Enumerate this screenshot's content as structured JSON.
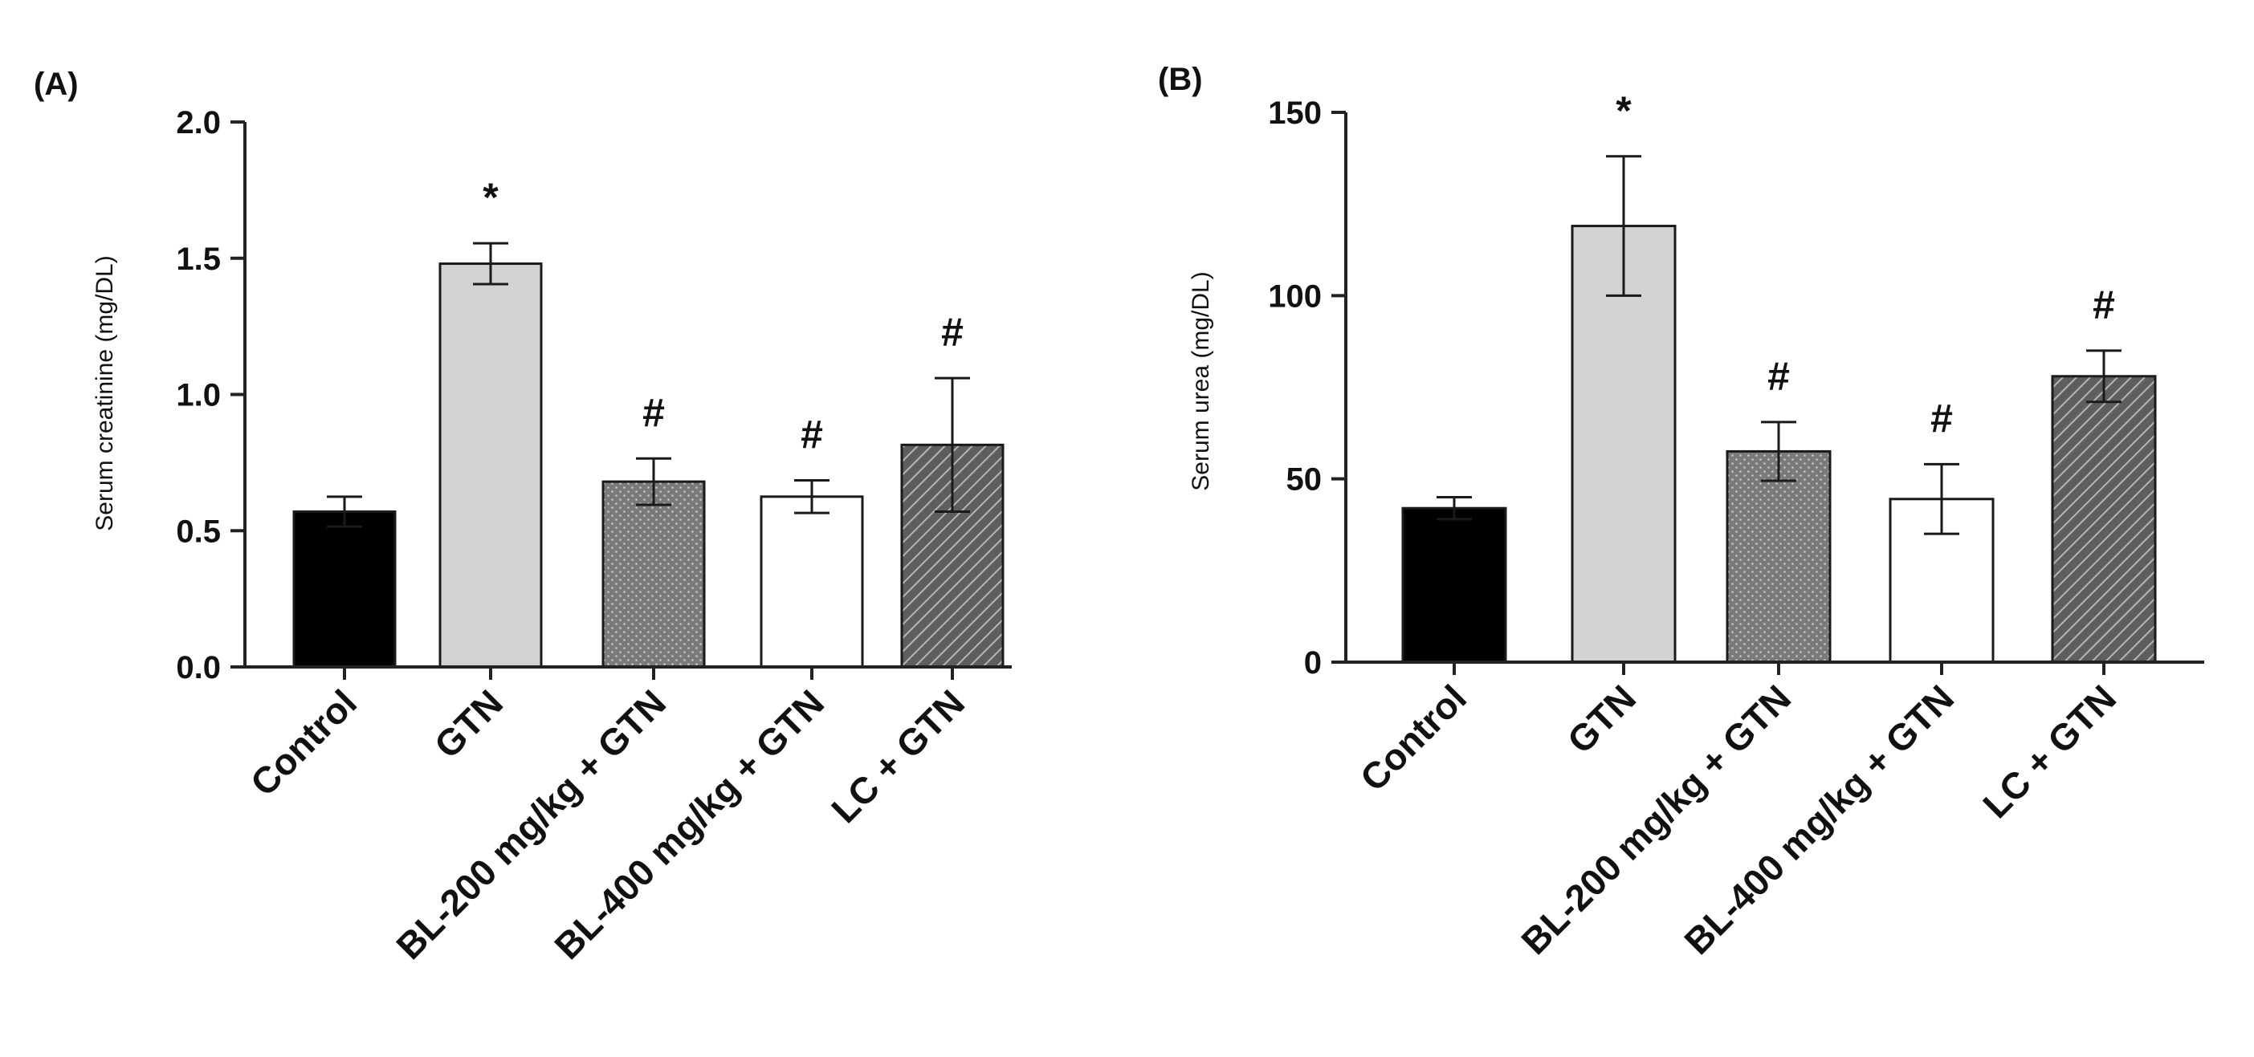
{
  "figure_labels": {
    "a": "(A)",
    "b": "(B)"
  },
  "chart_data": [
    {
      "type": "bar",
      "panel": "(A)",
      "title": "",
      "xlabel": "",
      "ylabel": "Serum creatinine (mg/DL)",
      "ylim": [
        0,
        2.0
      ],
      "yticks": [
        0.0,
        0.5,
        1.0,
        1.5,
        2.0
      ],
      "ytick_labels": [
        "0.0",
        "0.5",
        "1.0",
        "1.5",
        "2.0"
      ],
      "categories": [
        "Control",
        "GTN",
        "BL-200 mg/kg + GTN",
        "BL-400 mg/kg + GTN",
        "LC + GTN"
      ],
      "values": [
        0.57,
        1.48,
        0.68,
        0.625,
        0.815
      ],
      "errors": [
        0.055,
        0.075,
        0.085,
        0.06,
        0.245
      ],
      "annotations": [
        "",
        "*",
        "#",
        "#",
        "#"
      ],
      "fills": [
        "solid-black",
        "light-gray",
        "dotted-gray",
        "white",
        "hatched-gray"
      ]
    },
    {
      "type": "bar",
      "panel": "(B)",
      "title": "",
      "xlabel": "",
      "ylabel": "Serum urea (mg/DL)",
      "ylim": [
        0,
        150
      ],
      "yticks": [
        0,
        50,
        100,
        150
      ],
      "ytick_labels": [
        "0",
        "50",
        "100",
        "150"
      ],
      "categories": [
        "Control",
        "GTN",
        "BL-200 mg/kg + GTN",
        "BL-400 mg/kg + GTN",
        "LC + GTN"
      ],
      "values": [
        42,
        119,
        57.5,
        44.5,
        78
      ],
      "errors": [
        3,
        19,
        8,
        9.5,
        7
      ],
      "annotations": [
        "",
        "*",
        "#",
        "#",
        "#"
      ],
      "fills": [
        "solid-black",
        "light-gray",
        "dotted-gray",
        "white",
        "hatched-gray"
      ]
    }
  ],
  "colors": {
    "control": "#000000",
    "gtn": "#d3d3d3",
    "dotted": "#7d7d7d",
    "white": "#ffffff",
    "hatched": "#6f6f6f",
    "axis": "#222222"
  }
}
